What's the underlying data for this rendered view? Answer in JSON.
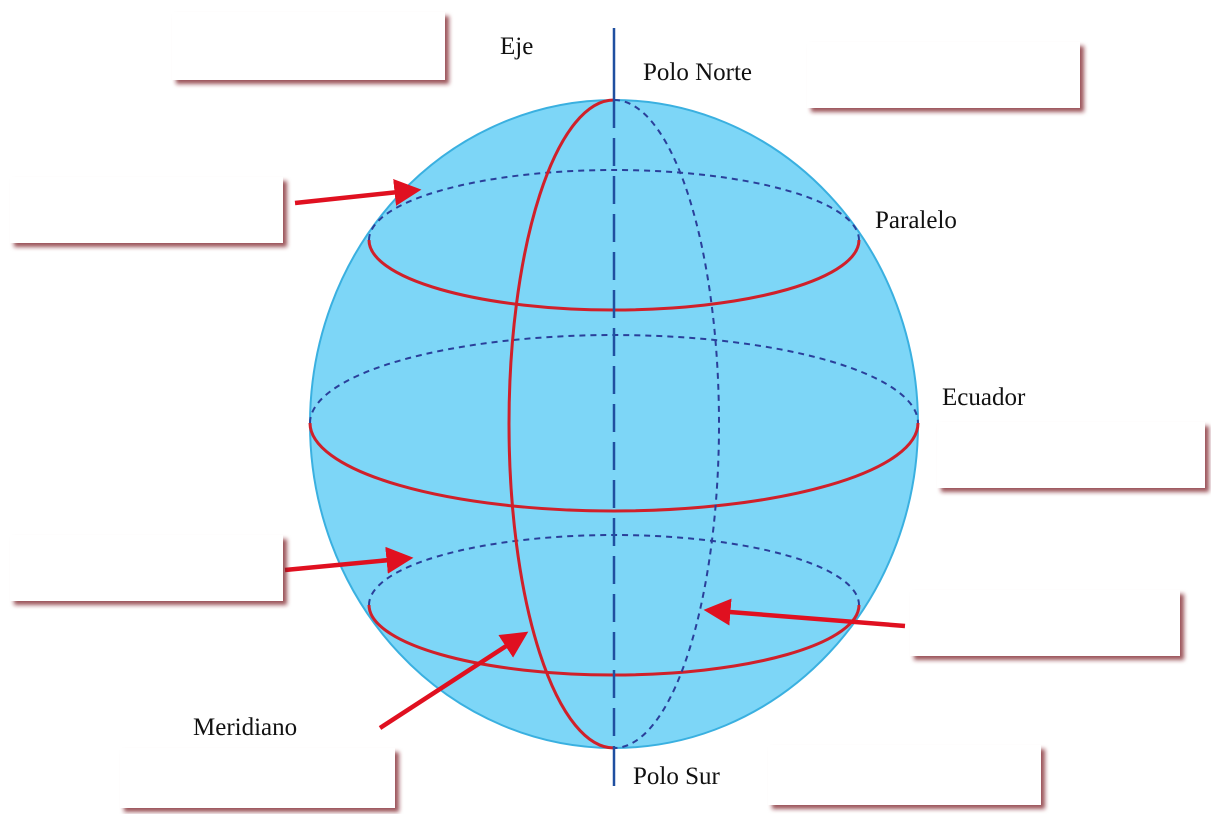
{
  "labels": {
    "axis": "Eje",
    "north_pole": "Polo Norte",
    "parallel": "Paralelo",
    "equator": "Ecuador",
    "meridian": "Meridiano",
    "south_pole": "Polo Sur"
  }
}
